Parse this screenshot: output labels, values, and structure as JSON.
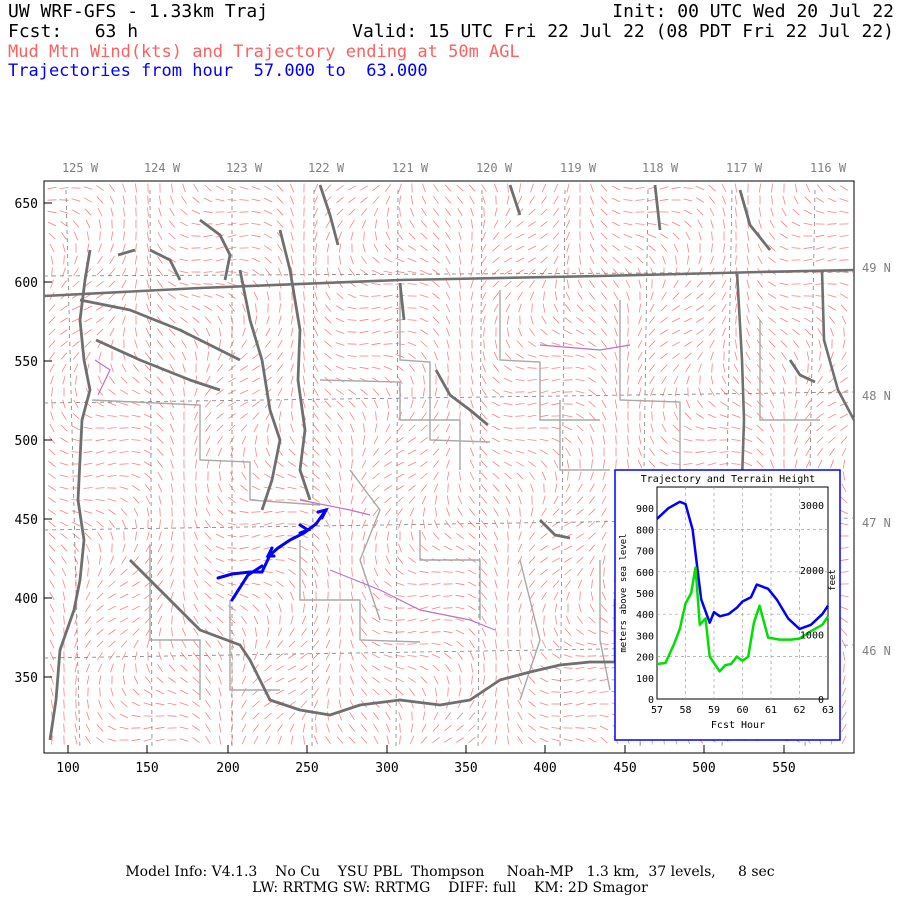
{
  "header": {
    "title": "UW WRF-GFS - 1.33km Traj",
    "init": "Init: 00 UTC Wed 20 Jul 22",
    "fcst": "Fcst:   63 h",
    "valid": "Valid: 15 UTC Fri 22 Jul 22 (08 PDT Fri 22 Jul 22)",
    "field": "Mud Mtn Wind(kts) and Trajectory ending at 50m AGL",
    "traj_range": "Trajectories from hour  57.000 to  63.000"
  },
  "map": {
    "x_ticks": [
      "100",
      "150",
      "200",
      "250",
      "300",
      "350",
      "400",
      "450",
      "500",
      "550"
    ],
    "y_ticks": [
      "650",
      "600",
      "550",
      "500",
      "450",
      "400",
      "350"
    ],
    "lon_labels": [
      "125 W",
      "124 W",
      "123 W",
      "122 W",
      "121 W",
      "120 W",
      "119 W",
      "118 W",
      "117 W",
      "116 W"
    ],
    "lat_labels": [
      "49 N",
      "48 N",
      "47 N",
      "46 N"
    ],
    "colors": {
      "wind": "#ff8080",
      "coast": "#707070",
      "state": "#707070",
      "county": "#a0a0a0",
      "river": "#c060c0",
      "trajectory": "#0000ff"
    }
  },
  "inset": {
    "title": "Trajectory and Terrain Height",
    "xlabel": "Fcst Hour",
    "ylabel_left": "meters above sea level",
    "ylabel_right": "feet",
    "x_ticks": [
      "57",
      "58",
      "59",
      "60",
      "61",
      "62",
      "63"
    ],
    "y_ticks_m": [
      "0",
      "100",
      "200",
      "300",
      "400",
      "500",
      "600",
      "700",
      "800",
      "900"
    ],
    "y_ticks_ft": [
      "0",
      "1000",
      "2000",
      "3000"
    ]
  },
  "chart_data": {
    "type": "line",
    "title": "Trajectory and Terrain Height",
    "xlabel": "Fcst Hour",
    "ylabel": "meters above sea level",
    "xlim": [
      57,
      63
    ],
    "ylim": [
      0,
      1000
    ],
    "grid": true,
    "series": [
      {
        "color": "#0000ff",
        "x": [
          57,
          57.4,
          57.8,
          58.0,
          58.25,
          58.55,
          58.85,
          59.0,
          59.2,
          59.5,
          59.8,
          60.0,
          60.3,
          60.5,
          60.9,
          61.2,
          61.6,
          62.0,
          62.4,
          62.8,
          63.0
        ],
        "y": [
          850,
          900,
          930,
          920,
          800,
          470,
          360,
          410,
          390,
          400,
          430,
          460,
          480,
          540,
          520,
          470,
          380,
          330,
          350,
          400,
          440
        ]
      },
      {
        "color": "#00e000",
        "x": [
          57,
          57.3,
          57.6,
          57.8,
          58.0,
          58.2,
          58.35,
          58.5,
          58.7,
          58.85,
          59.0,
          59.2,
          59.4,
          59.6,
          59.8,
          60.0,
          60.2,
          60.4,
          60.6,
          60.9,
          61.3,
          61.7,
          62.0,
          62.4,
          62.8,
          63.0
        ],
        "y": [
          165,
          170,
          260,
          330,
          450,
          500,
          620,
          350,
          380,
          200,
          170,
          130,
          160,
          165,
          200,
          180,
          200,
          360,
          440,
          290,
          280,
          280,
          285,
          320,
          350,
          390
        ]
      }
    ]
  },
  "footer": {
    "line1": "Model Info: V4.1.3    No Cu    YSU PBL  Thompson     Noah-MP   1.3 km,  37 levels,     8 sec",
    "line2": "LW: RRTMG SW: RRTMG    DIFF: full    KM: 2D Smagor"
  }
}
